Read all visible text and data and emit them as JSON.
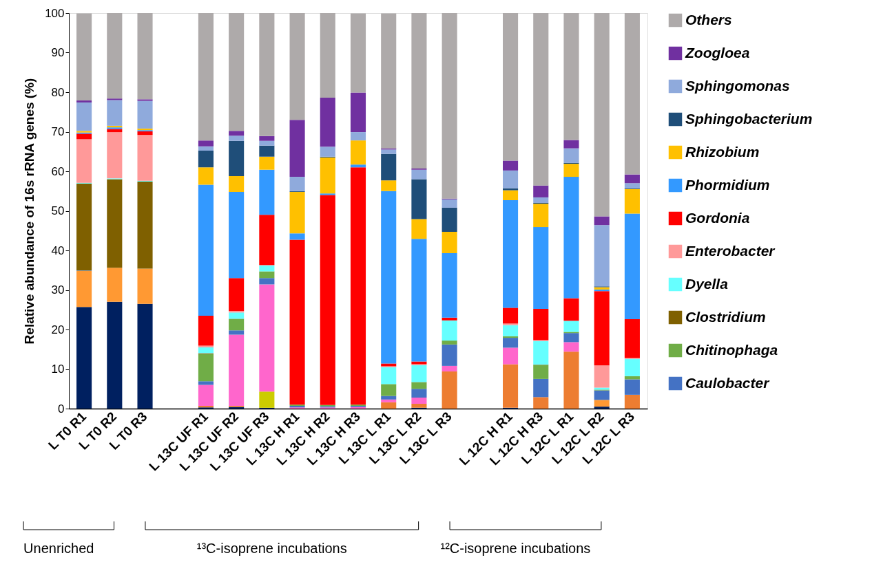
{
  "chart_data": {
    "type": "bar",
    "stacked": true,
    "ylabel": "Relative abundance of 16s rRNA genes (%)",
    "ylim": [
      0,
      100
    ],
    "yticks": [
      0,
      10,
      20,
      30,
      40,
      50,
      60,
      70,
      80,
      90,
      100
    ],
    "grid": false,
    "legend": "right",
    "categories": [
      "L T0 R1",
      "L T0 R2",
      "L T0 R3",
      null,
      "L 13C UF R1",
      "L 13C UF R2",
      "L 13C UF R3",
      "L 13C H R1",
      "L 13C H R2",
      "L 13C H R3",
      "L 13C L R1",
      "L 13C L R2",
      "L 13C L R3",
      null,
      "L 12C H R1",
      "L 12C H R3",
      "L 12C L R1",
      "L 12C L R2",
      "L 12C L R3"
    ],
    "annotations": [
      "Unenriched",
      "¹³C-isoprene  incubations",
      "¹²C-isoprene  incubations"
    ],
    "series": [
      {
        "color": "#002060",
        "values": [
          25.7,
          27,
          26.5,
          null,
          0.3,
          0.4,
          0.2,
          0,
          0,
          0,
          0,
          0.2,
          0,
          null,
          0.2,
          0,
          0,
          0.5,
          0
        ]
      },
      {
        "color": "#ed7d31",
        "values": [
          0,
          0,
          0,
          null,
          0.4,
          0.3,
          0,
          0,
          0,
          0,
          1.6,
          1.0,
          9.4,
          null,
          11,
          2.9,
          14.4,
          0,
          3.5
        ]
      },
      {
        "color": "#ff9933",
        "values": [
          9.1,
          8.6,
          8.9,
          null,
          0,
          0,
          0,
          0,
          0,
          0,
          0,
          0,
          0,
          null,
          0,
          0,
          0,
          1.7,
          0
        ]
      },
      {
        "color": "#cccc00",
        "values": [
          0,
          0,
          0,
          null,
          0,
          0,
          4.1,
          0,
          0,
          0,
          0,
          0,
          0,
          null,
          0,
          0,
          0,
          0,
          0
        ]
      },
      {
        "color": "#ff66cc",
        "values": [
          0,
          0,
          0,
          null,
          5.3,
          18,
          27.1,
          0.3,
          0.3,
          0.4,
          0.7,
          1.6,
          1.4,
          null,
          4.2,
          0,
          2.4,
          0,
          0
        ]
      },
      {
        "name": "Caulobacter",
        "color": "#4472c4",
        "values": [
          0.1,
          0,
          0,
          null,
          0.9,
          1.1,
          1.6,
          0.4,
          0.3,
          0.3,
          0.9,
          2.2,
          5.4,
          null,
          2.5,
          4.6,
          2.3,
          2.4,
          3.9
        ]
      },
      {
        "name": "Chitinophaga",
        "color": "#70ad47",
        "values": [
          0,
          0,
          0,
          null,
          6.9,
          2.8,
          1.7,
          0.3,
          0.3,
          0.3,
          3,
          1.6,
          1,
          null,
          0.4,
          3.5,
          0.3,
          0.2,
          0.8
        ]
      },
      {
        "name": "Clostridium",
        "color": "#7f6000",
        "values": [
          22,
          22.4,
          22,
          null,
          0.2,
          0.1,
          0,
          0,
          0,
          0,
          null,
          0.1,
          0,
          null,
          0,
          0.1,
          0,
          0,
          0
        ]
      },
      {
        "name": "Dyella",
        "color": "#66ffff",
        "values": [
          0.2,
          0.2,
          0.2,
          null,
          1.5,
          1.6,
          1.5,
          0,
          0,
          0,
          4.3,
          4.3,
          5.1,
          null,
          2.8,
          6,
          2.8,
          0.5,
          4.4
        ]
      },
      {
        "name": "Enterobacter",
        "color": "#ff9999",
        "values": [
          11,
          11.7,
          11.6,
          null,
          0.4,
          0.4,
          0.1,
          0,
          0,
          0,
          0.2,
          0.2,
          0,
          null,
          0.4,
          0.2,
          0,
          5.6,
          0.2
        ]
      },
      {
        "name": "Gordonia",
        "color": "#ff0000",
        "values": [
          1.4,
          0.8,
          0.9,
          null,
          7.6,
          8.3,
          12.7,
          41.7,
          53.1,
          60,
          0.7,
          0.7,
          0.7,
          null,
          4,
          7.9,
          5.7,
          18.8,
          9.8
        ]
      },
      {
        "name": "Phormidium",
        "color": "#3399ff",
        "values": [
          0.3,
          0.4,
          0.3,
          null,
          33.1,
          21.8,
          11.4,
          1.6,
          0.4,
          0.7,
          43.6,
          31,
          16.3,
          null,
          27.2,
          20.7,
          30.7,
          0.4,
          26.7
        ]
      },
      {
        "name": "Rhizobium",
        "color": "#ffc000",
        "values": [
          0.4,
          0.4,
          0.4,
          null,
          4.4,
          4,
          3.3,
          10.5,
          9.1,
          6.1,
          2.7,
          5,
          5.4,
          null,
          2.5,
          5.9,
          3.3,
          0.6,
          6.2
        ]
      },
      {
        "name": "Sphingobacterium",
        "color": "#1f4e79",
        "values": [
          null,
          0,
          0,
          null,
          4.2,
          8.9,
          2.8,
          0.2,
          0.2,
          null,
          6.7,
          10.1,
          6.1,
          null,
          0.5,
          0.2,
          0.2,
          0.2,
          0.2
        ]
      },
      {
        "name": "Sphingomonas",
        "color": "#8faadc",
        "values": [
          7.2,
          6.5,
          7,
          null,
          1.1,
          1.3,
          1.2,
          3.6,
          2.5,
          2.1,
          1.1,
          2.4,
          2.1,
          null,
          4.5,
          1.4,
          3.7,
          15.5,
          1.3
        ]
      },
      {
        "name": "Zoogloea",
        "color": "#7030a0",
        "values": [
          0.5,
          0.4,
          0.4,
          null,
          1.5,
          1.2,
          1.2,
          14.4,
          12.4,
          10,
          0.3,
          0.3,
          0.2,
          null,
          2.5,
          3,
          2.1,
          2.2,
          2.2
        ]
      },
      {
        "name": "Others",
        "color": "#aeaaaa",
        "values": [
          22,
          21.6,
          21.8,
          null,
          32.2,
          29.8,
          31.1,
          27,
          21.4,
          20,
          34.1,
          39.3,
          46.9,
          null,
          37.3,
          43.6,
          32.1,
          51.4,
          40.8
        ]
      }
    ]
  }
}
